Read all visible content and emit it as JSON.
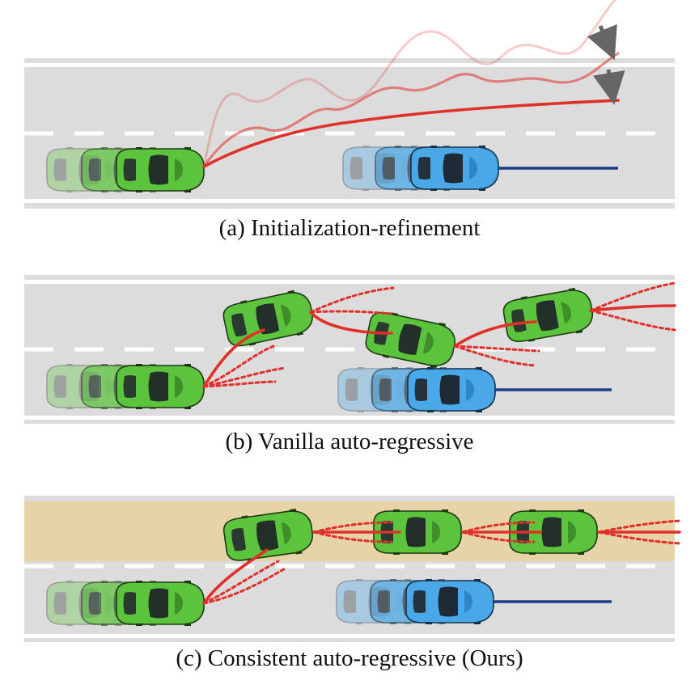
{
  "captions": {
    "a": "(a) Initialization-refinement",
    "b": "(b) Vanilla auto-regressive",
    "c": "(c) Consistent auto-regressive (Ours)"
  },
  "colors": {
    "road": "#dcdcdc",
    "lane_line": "#ffffff",
    "highlight_lane": "#e6d3a8",
    "ego_car": "#5cc43c",
    "other_car": "#4aa8e8",
    "trajectory": "#e0302a",
    "other_trajectory": "#1f3c88",
    "arrow": "#666666"
  }
}
